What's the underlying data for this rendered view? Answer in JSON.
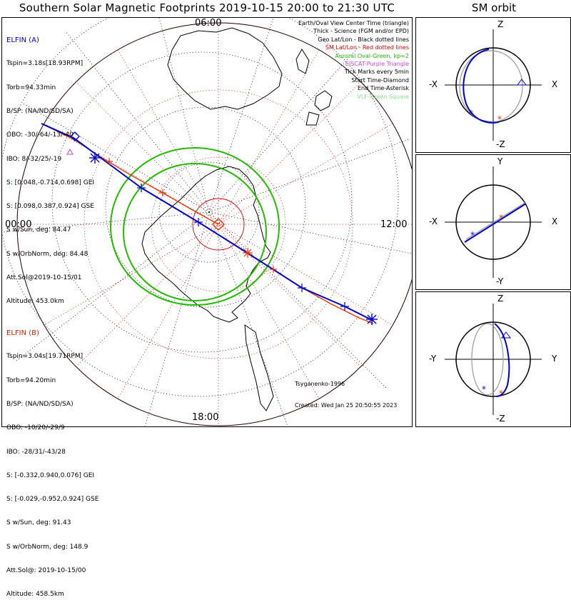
{
  "title": "Southern Solar Magnetic Footprints 2019-10-15 20:00 to 21:30 UTC",
  "orbit_title": "SM orbit",
  "clock_labels": {
    "top": "06:00",
    "left": "00:00",
    "right": "12:00",
    "bottom": "18:00"
  },
  "elfin_a": {
    "name": "ELFIN (A)",
    "lines": [
      "Tspin=3.18s[18.93RPM]",
      "Torb=94.33min",
      "B/SP: (NA/ND/SD/SA)",
      "OBO: -30/-64/-13/-40",
      "IBO: 8/-32/25/-19",
      "S: [0.048,-0.714,0.698] GEI",
      "S: [0.098,0.387,0.924] GSE",
      "S w/Sun, deg: 84.47",
      "S w/OrbNorm, deg: 84.48",
      "Att.Sol@2019-10-15/01",
      "Altitude: 453.0km"
    ],
    "color": "#0000cc"
  },
  "elfin_b": {
    "name": "ELFIN (B)",
    "lines": [
      "Tspin=3.04s[19.71RPM]",
      "Torb=94.20min",
      "B/SP: (NA/ND/SD/SA)",
      "OBO: -10/20/-29/9",
      "IBO: -28/31/-43/28",
      "S: [-0.332,0.940,0.076] GEI",
      "S: [-0.029,-0.952,0.924] GSE",
      "S w/Sun, deg: 91.43",
      "S w/OrbNorm, deg: 148.9",
      "Att.Sol@: 2019-10-15/00",
      "Altitude: 458.5km"
    ],
    "color": "#ee3300"
  },
  "legend": [
    {
      "text": "Earth/Oval View Center Time (triangle)",
      "color": "#000000"
    },
    {
      "text": "Thick - Science (FGM and/or EPD)",
      "color": "#000000"
    },
    {
      "text": "Geo Lat/Lon - Black dotted lines",
      "color": "#000000"
    },
    {
      "text": "SM Lat/Lon - Red dotted lines",
      "color": "#dd0000"
    },
    {
      "text": "Auroral Oval-Green, kp=2",
      "color": "#22bb00"
    },
    {
      "text": "EISCAT-Purple Triangle",
      "color": "#cc44cc"
    },
    {
      "text": "Tick Marks every 5min",
      "color": "#000000"
    },
    {
      "text": "Start Time-Diamond",
      "color": "#000000"
    },
    {
      "text": "End Time-Asterisk",
      "color": "#000000"
    },
    {
      "text": "VLF-Green Square",
      "color": "#88dd88"
    }
  ],
  "credit": {
    "model": "Tsyganenko-1996",
    "created": "Created: Wed Jan 25 20:50:55 2023"
  },
  "orbit_panels": [
    {
      "top": "Z",
      "bottom": "-Z",
      "left": "-X",
      "right": "X"
    },
    {
      "top": "Y",
      "bottom": "-Y",
      "left": "-X",
      "right": "X"
    },
    {
      "top": "Z",
      "bottom": "-Z",
      "left": "-Y",
      "right": "Y"
    }
  ],
  "colors": {
    "elfin_a": "#0000cc",
    "elfin_b": "#ee3300",
    "auroral_oval": "#22bb00",
    "sm_grid": "#dd0000",
    "geo_grid": "#000000"
  }
}
